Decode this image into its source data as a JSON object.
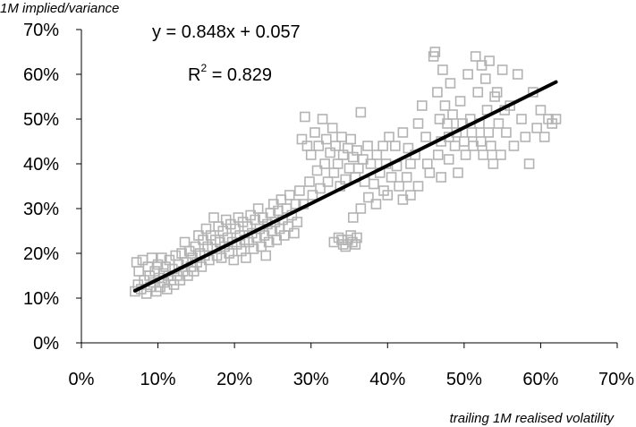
{
  "chart_data": {
    "type": "scatter",
    "title": "",
    "xlabel": "trailing 1M realised volatility",
    "ylabel": "1M implied/variance",
    "xlim": [
      0,
      0.7
    ],
    "ylim": [
      0,
      0.7
    ],
    "x_ticks": [
      "0%",
      "10%",
      "20%",
      "30%",
      "40%",
      "50%",
      "60%",
      "70%"
    ],
    "y_ticks": [
      "0%",
      "10%",
      "20%",
      "30%",
      "40%",
      "50%",
      "60%",
      "70%"
    ],
    "grid": false,
    "legend": "none",
    "marker": "open-square",
    "marker_color": "#b3b3b3",
    "trendline_color": "#000000",
    "trendline": {
      "slope": 0.848,
      "intercept": 0.057,
      "x_range": [
        0.07,
        0.62
      ]
    },
    "equation_label": "y = 0.848x + 0.057",
    "r2_label": {
      "prefix": "R",
      "exponent": "2",
      "suffix": " = 0.829"
    },
    "series": [
      {
        "values": [
          [
            0.07,
            0.115
          ],
          [
            0.072,
            0.18
          ],
          [
            0.074,
            0.13
          ],
          [
            0.075,
            0.16
          ],
          [
            0.078,
            0.12
          ],
          [
            0.08,
            0.185
          ],
          [
            0.082,
            0.14
          ],
          [
            0.085,
            0.11
          ],
          [
            0.087,
            0.17
          ],
          [
            0.089,
            0.15
          ],
          [
            0.09,
            0.125
          ],
          [
            0.092,
            0.19
          ],
          [
            0.094,
            0.135
          ],
          [
            0.096,
            0.16
          ],
          [
            0.098,
            0.115
          ],
          [
            0.1,
            0.175
          ],
          [
            0.101,
            0.145
          ],
          [
            0.103,
            0.125
          ],
          [
            0.105,
            0.19
          ],
          [
            0.107,
            0.155
          ],
          [
            0.108,
            0.135
          ],
          [
            0.11,
            0.17
          ],
          [
            0.112,
            0.12
          ],
          [
            0.114,
            0.15
          ],
          [
            0.115,
            0.185
          ],
          [
            0.117,
            0.14
          ],
          [
            0.119,
            0.165
          ],
          [
            0.121,
            0.13
          ],
          [
            0.123,
            0.195
          ],
          [
            0.125,
            0.15
          ],
          [
            0.127,
            0.175
          ],
          [
            0.129,
            0.14
          ],
          [
            0.131,
            0.2
          ],
          [
            0.133,
            0.16
          ],
          [
            0.135,
            0.225
          ],
          [
            0.137,
            0.18
          ],
          [
            0.139,
            0.15
          ],
          [
            0.141,
            0.205
          ],
          [
            0.143,
            0.17
          ],
          [
            0.145,
            0.19
          ],
          [
            0.147,
            0.16
          ],
          [
            0.149,
            0.215
          ],
          [
            0.151,
            0.18
          ],
          [
            0.153,
            0.24
          ],
          [
            0.155,
            0.2
          ],
          [
            0.157,
            0.17
          ],
          [
            0.159,
            0.23
          ],
          [
            0.161,
            0.195
          ],
          [
            0.163,
            0.255
          ],
          [
            0.165,
            0.215
          ],
          [
            0.167,
            0.185
          ],
          [
            0.169,
            0.24
          ],
          [
            0.171,
            0.21
          ],
          [
            0.173,
            0.28
          ],
          [
            0.175,
            0.23
          ],
          [
            0.177,
            0.195
          ],
          [
            0.179,
            0.26
          ],
          [
            0.181,
            0.225
          ],
          [
            0.183,
            0.19
          ],
          [
            0.185,
            0.25
          ],
          [
            0.187,
            0.215
          ],
          [
            0.189,
            0.275
          ],
          [
            0.191,
            0.235
          ],
          [
            0.193,
            0.2
          ],
          [
            0.195,
            0.265
          ],
          [
            0.197,
            0.225
          ],
          [
            0.199,
            0.185
          ],
          [
            0.201,
            0.255
          ],
          [
            0.203,
            0.22
          ],
          [
            0.205,
            0.28
          ],
          [
            0.207,
            0.24
          ],
          [
            0.209,
            0.205
          ],
          [
            0.211,
            0.27
          ],
          [
            0.213,
            0.23
          ],
          [
            0.215,
            0.19
          ],
          [
            0.217,
            0.26
          ],
          [
            0.219,
            0.225
          ],
          [
            0.221,
            0.285
          ],
          [
            0.223,
            0.245
          ],
          [
            0.225,
            0.21
          ],
          [
            0.227,
            0.275
          ],
          [
            0.229,
            0.235
          ],
          [
            0.231,
            0.3
          ],
          [
            0.233,
            0.255
          ],
          [
            0.235,
            0.215
          ],
          [
            0.237,
            0.28
          ],
          [
            0.239,
            0.24
          ],
          [
            0.241,
            0.195
          ],
          [
            0.243,
            0.265
          ],
          [
            0.245,
            0.225
          ],
          [
            0.247,
            0.29
          ],
          [
            0.249,
            0.25
          ],
          [
            0.251,
            0.31
          ],
          [
            0.253,
            0.27
          ],
          [
            0.255,
            0.23
          ],
          [
            0.257,
            0.295
          ],
          [
            0.259,
            0.255
          ],
          [
            0.261,
            0.32
          ],
          [
            0.263,
            0.275
          ],
          [
            0.265,
            0.24
          ],
          [
            0.268,
            0.3
          ],
          [
            0.27,
            0.26
          ],
          [
            0.272,
            0.33
          ],
          [
            0.275,
            0.285
          ],
          [
            0.278,
            0.245
          ],
          [
            0.28,
            0.31
          ],
          [
            0.282,
            0.27
          ],
          [
            0.285,
            0.34
          ],
          [
            0.288,
            0.455
          ],
          [
            0.29,
            0.31
          ],
          [
            0.292,
            0.505
          ],
          [
            0.295,
            0.44
          ],
          [
            0.298,
            0.36
          ],
          [
            0.3,
            0.42
          ],
          [
            0.302,
            0.33
          ],
          [
            0.305,
            0.47
          ],
          [
            0.308,
            0.385
          ],
          [
            0.31,
            0.44
          ],
          [
            0.312,
            0.345
          ],
          [
            0.315,
            0.5
          ],
          [
            0.318,
            0.4
          ],
          [
            0.32,
            0.455
          ],
          [
            0.322,
            0.36
          ],
          [
            0.325,
            0.425
          ],
          [
            0.328,
            0.48
          ],
          [
            0.33,
            0.38
          ],
          [
            0.332,
            0.44
          ],
          [
            0.335,
            0.4
          ],
          [
            0.338,
            0.35
          ],
          [
            0.34,
            0.46
          ],
          [
            0.342,
            0.42
          ],
          [
            0.345,
            0.365
          ],
          [
            0.348,
            0.435
          ],
          [
            0.35,
            0.39
          ],
          [
            0.352,
            0.455
          ],
          [
            0.355,
            0.415
          ],
          [
            0.358,
            0.37
          ],
          [
            0.36,
            0.43
          ],
          [
            0.362,
            0.39
          ],
          [
            0.365,
            0.515
          ],
          [
            0.368,
            0.41
          ],
          [
            0.37,
            0.36
          ],
          [
            0.374,
            0.44
          ],
          [
            0.378,
            0.4
          ],
          [
            0.382,
            0.355
          ],
          [
            0.386,
            0.42
          ],
          [
            0.39,
            0.38
          ],
          [
            0.394,
            0.44
          ],
          [
            0.398,
            0.4
          ],
          [
            0.402,
            0.46
          ],
          [
            0.33,
            0.225
          ],
          [
            0.336,
            0.235
          ],
          [
            0.342,
            0.22
          ],
          [
            0.348,
            0.23
          ],
          [
            0.354,
            0.225
          ],
          [
            0.36,
            0.235
          ],
          [
            0.345,
            0.215
          ],
          [
            0.352,
            0.24
          ],
          [
            0.358,
            0.22
          ],
          [
            0.34,
            0.23
          ],
          [
            0.41,
            0.44
          ],
          [
            0.42,
            0.47
          ],
          [
            0.43,
            0.4
          ],
          [
            0.44,
            0.49
          ],
          [
            0.45,
            0.46
          ],
          [
            0.455,
            0.38
          ],
          [
            0.46,
            0.64
          ],
          [
            0.462,
            0.65
          ],
          [
            0.465,
            0.56
          ],
          [
            0.468,
            0.5
          ],
          [
            0.47,
            0.45
          ],
          [
            0.472,
            0.61
          ],
          [
            0.475,
            0.53
          ],
          [
            0.478,
            0.49
          ],
          [
            0.48,
            0.46
          ],
          [
            0.482,
            0.58
          ],
          [
            0.485,
            0.51
          ],
          [
            0.488,
            0.44
          ],
          [
            0.49,
            0.47
          ],
          [
            0.492,
            0.38
          ],
          [
            0.495,
            0.54
          ],
          [
            0.498,
            0.49
          ],
          [
            0.5,
            0.45
          ],
          [
            0.502,
            0.42
          ],
          [
            0.505,
            0.6
          ],
          [
            0.508,
            0.5
          ],
          [
            0.51,
            0.47
          ],
          [
            0.512,
            0.44
          ],
          [
            0.515,
            0.64
          ],
          [
            0.518,
            0.56
          ],
          [
            0.52,
            0.49
          ],
          [
            0.522,
            0.45
          ],
          [
            0.525,
            0.42
          ],
          [
            0.528,
            0.59
          ],
          [
            0.53,
            0.52
          ],
          [
            0.532,
            0.47
          ],
          [
            0.535,
            0.44
          ],
          [
            0.538,
            0.4
          ],
          [
            0.54,
            0.55
          ],
          [
            0.545,
            0.49
          ],
          [
            0.55,
            0.61
          ],
          [
            0.555,
            0.47
          ],
          [
            0.56,
            0.53
          ],
          [
            0.565,
            0.44
          ],
          [
            0.57,
            0.6
          ],
          [
            0.575,
            0.5
          ],
          [
            0.58,
            0.46
          ],
          [
            0.585,
            0.4
          ],
          [
            0.59,
            0.56
          ],
          [
            0.595,
            0.48
          ],
          [
            0.6,
            0.52
          ],
          [
            0.605,
            0.46
          ],
          [
            0.61,
            0.5
          ],
          [
            0.615,
            0.49
          ],
          [
            0.62,
            0.5
          ],
          [
            0.548,
            0.42
          ],
          [
            0.553,
            0.52
          ],
          [
            0.533,
            0.63
          ],
          [
            0.543,
            0.56
          ],
          [
            0.523,
            0.62
          ],
          [
            0.43,
            0.33
          ],
          [
            0.44,
            0.35
          ],
          [
            0.42,
            0.32
          ],
          [
            0.415,
            0.35
          ],
          [
            0.425,
            0.37
          ],
          [
            0.47,
            0.37
          ],
          [
            0.48,
            0.41
          ],
          [
            0.395,
            0.34
          ],
          [
            0.385,
            0.31
          ],
          [
            0.405,
            0.37
          ],
          [
            0.445,
            0.53
          ],
          [
            0.436,
            0.42
          ],
          [
            0.452,
            0.4
          ],
          [
            0.466,
            0.42
          ],
          [
            0.4,
            0.33
          ],
          [
            0.412,
            0.395
          ],
          [
            0.427,
            0.435
          ],
          [
            0.375,
            0.325
          ],
          [
            0.365,
            0.3
          ],
          [
            0.355,
            0.28
          ]
        ]
      }
    ]
  }
}
